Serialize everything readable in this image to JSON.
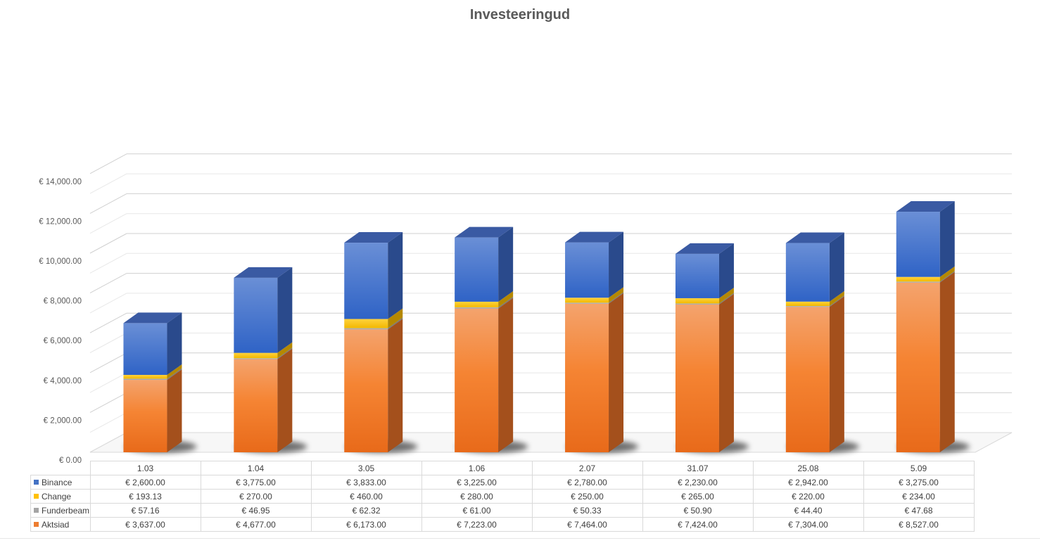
{
  "chart_data": {
    "type": "bar",
    "stacked": true,
    "three_d": true,
    "title": "Investeeringud",
    "categories": [
      "1.03",
      "1.04",
      "3.05",
      "1.06",
      "2.07",
      "31.07",
      "25.08",
      "5.09"
    ],
    "series": [
      {
        "name": "Aktsiad",
        "color": "#ed7d31",
        "values": [
          3637,
          4677,
          6173,
          7223,
          7464,
          7424,
          7304,
          8527
        ],
        "labels": [
          "€ 3,637.00",
          "€ 4,677.00",
          "€ 6,173.00",
          "€ 7,223.00",
          "€ 7,464.00",
          "€ 7,424.00",
          "€ 7,304.00",
          "€ 8,527.00"
        ]
      },
      {
        "name": "Funderbeam",
        "color": "#a5a5a5",
        "values": [
          57.16,
          46.95,
          62.32,
          61.0,
          50.33,
          50.9,
          44.4,
          47.68
        ],
        "labels": [
          "€ 57.16",
          "€ 46.95",
          "€ 62.32",
          "€ 61.00",
          "€ 50.33",
          "€ 50.90",
          "€ 44.40",
          "€ 47.68"
        ]
      },
      {
        "name": "Change",
        "color": "#ffc000",
        "values": [
          193.13,
          270,
          460,
          280,
          250,
          265,
          220,
          234
        ],
        "labels": [
          "€ 193.13",
          "€ 270.00",
          "€ 460.00",
          "€ 280.00",
          "€ 250.00",
          "€ 265.00",
          "€ 220.00",
          "€ 234.00"
        ]
      },
      {
        "name": "Binance",
        "color": "#4472c4",
        "values": [
          2600,
          3775,
          3833,
          3225,
          2780,
          2230,
          2942,
          3275
        ],
        "labels": [
          "€ 2,600.00",
          "€ 3,775.00",
          "€ 3,833.00",
          "€ 3,225.00",
          "€ 2,780.00",
          "€ 2,230.00",
          "€ 2,942.00",
          "€ 3,275.00"
        ]
      }
    ],
    "table_order": [
      "Binance",
      "Change",
      "Funderbeam",
      "Aktsiad"
    ],
    "ylim": [
      0,
      14000
    ],
    "yticks": [
      0,
      2000,
      4000,
      6000,
      8000,
      10000,
      12000,
      14000
    ],
    "ytick_labels": [
      "€ 0.00",
      "€ 2,000.00",
      "€ 4,000.00",
      "€ 6,000.00",
      "€ 8,000.00",
      "€ 10,000.00",
      "€ 12,000.00",
      "€ 14,000.00"
    ],
    "grid": true,
    "legend": "data-table"
  }
}
